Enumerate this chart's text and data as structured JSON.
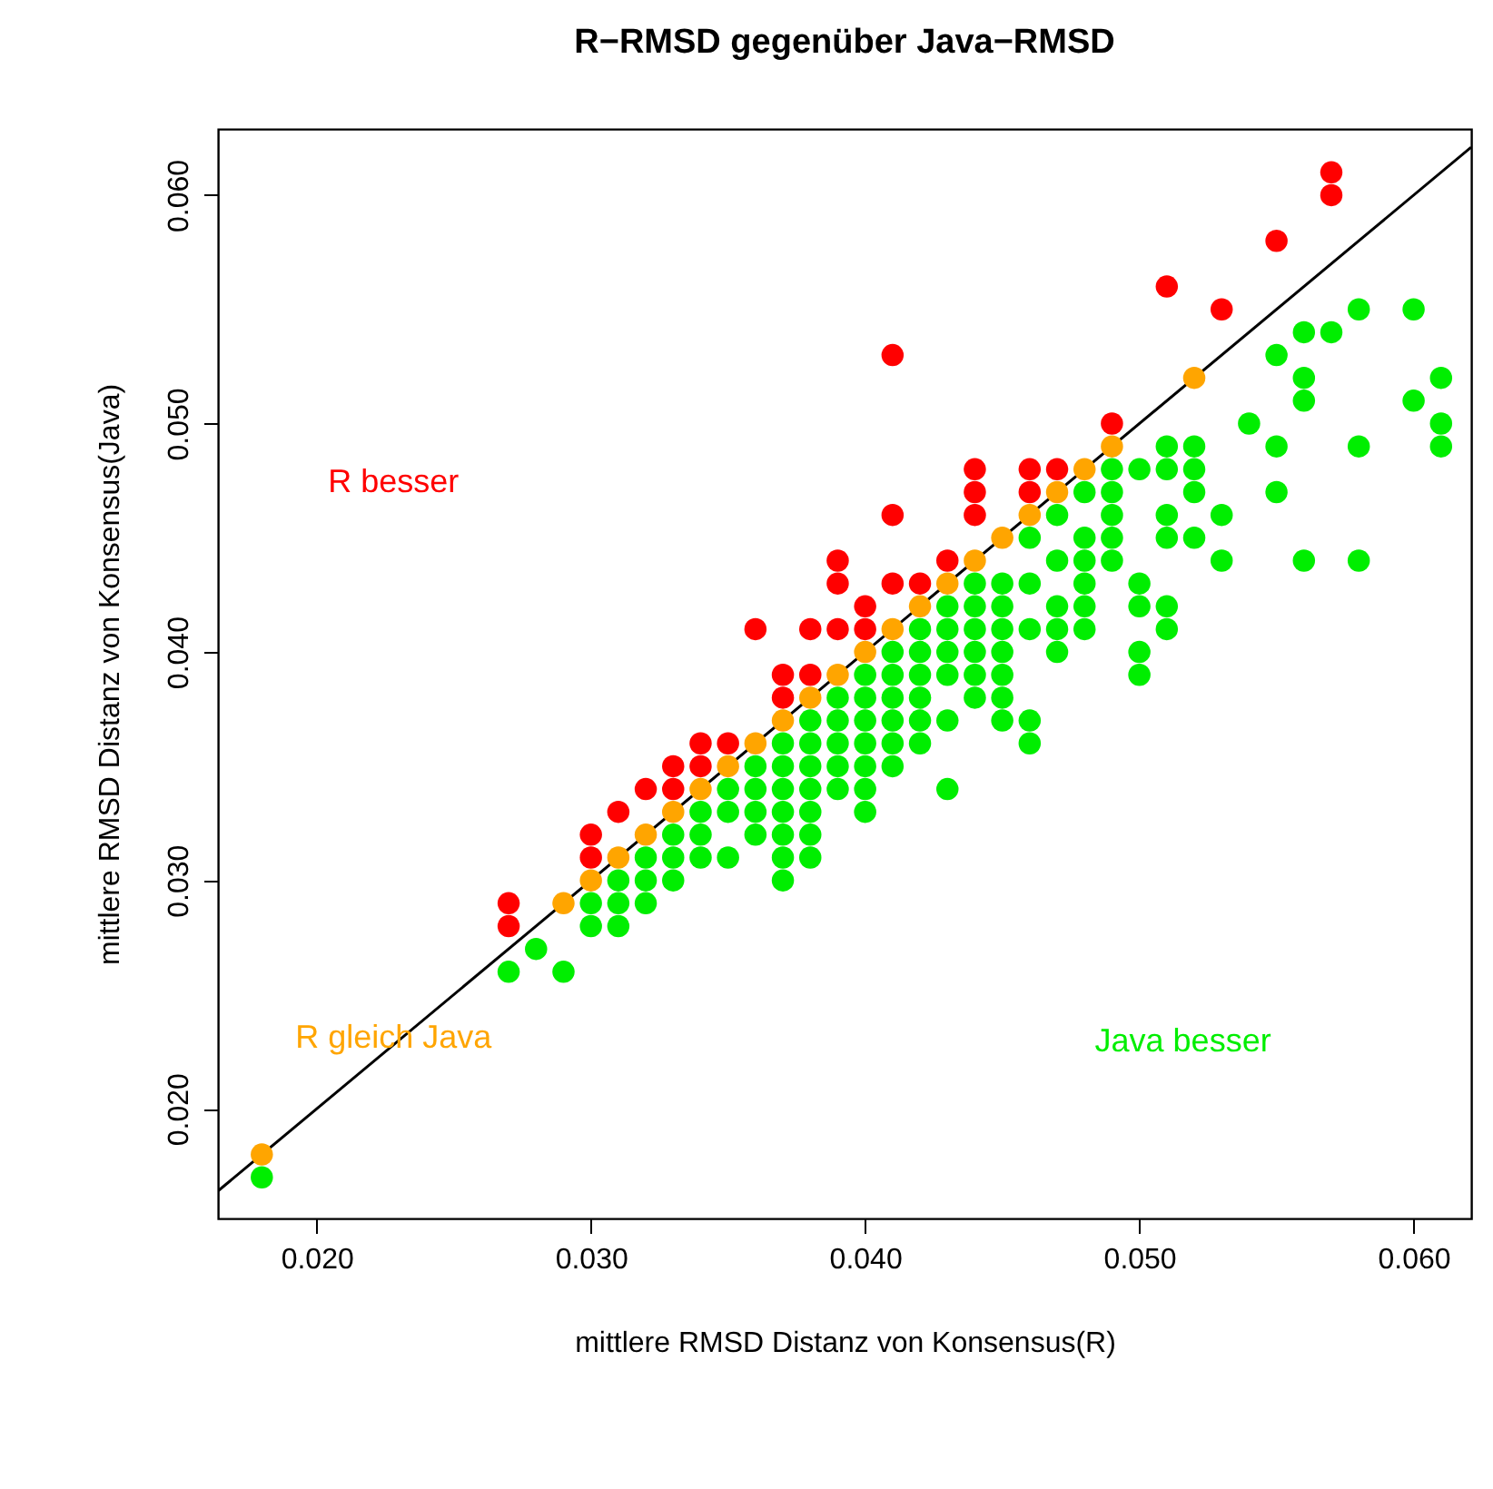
{
  "chart_data": {
    "type": "scatter",
    "title": "R−RMSD gegenüber Java−RMSD",
    "xlabel": "mittlere RMSD Distanz von Konsensus(R)",
    "ylabel": "mittlere RMSD Distanz von Konsensus(Java)",
    "xlim": [
      0.0164,
      0.0621
    ],
    "ylim": [
      0.0152,
      0.0629
    ],
    "xticks": [
      {
        "value": 0.02,
        "label": "0.020"
      },
      {
        "value": 0.03,
        "label": "0.030"
      },
      {
        "value": 0.04,
        "label": "0.040"
      },
      {
        "value": 0.05,
        "label": "0.050"
      },
      {
        "value": 0.06,
        "label": "0.060"
      }
    ],
    "yticks": [
      {
        "value": 0.02,
        "label": "0.020"
      },
      {
        "value": 0.03,
        "label": "0.030"
      },
      {
        "value": 0.04,
        "label": "0.040"
      },
      {
        "value": 0.05,
        "label": "0.050"
      },
      {
        "value": 0.06,
        "label": "0.060"
      }
    ],
    "marker": "circle",
    "grid": false,
    "series": [
      {
        "type": "line",
        "color": "#000000",
        "line_style": "solid",
        "marker": "none",
        "x": [
          0.0164,
          0.0621
        ],
        "values": [
          0.0164,
          0.0621
        ]
      },
      {
        "name": "R besser",
        "color": "#ff0000",
        "x": [
          0.027,
          0.027,
          0.03,
          0.03,
          0.031,
          0.032,
          0.033,
          0.033,
          0.034,
          0.034,
          0.035,
          0.036,
          0.037,
          0.037,
          0.038,
          0.038,
          0.039,
          0.039,
          0.039,
          0.04,
          0.04,
          0.041,
          0.041,
          0.041,
          0.042,
          0.043,
          0.044,
          0.044,
          0.044,
          0.046,
          0.046,
          0.047,
          0.049,
          0.051,
          0.053,
          0.055,
          0.057,
          0.057
        ],
        "values": [
          0.029,
          0.028,
          0.032,
          0.031,
          0.033,
          0.034,
          0.035,
          0.034,
          0.036,
          0.035,
          0.036,
          0.041,
          0.039,
          0.038,
          0.041,
          0.039,
          0.044,
          0.043,
          0.041,
          0.042,
          0.041,
          0.053,
          0.046,
          0.043,
          0.043,
          0.044,
          0.048,
          0.047,
          0.046,
          0.048,
          0.047,
          0.048,
          0.05,
          0.056,
          0.055,
          0.058,
          0.061,
          0.06
        ]
      },
      {
        "name": "R gleich Java",
        "color": "#ffa500",
        "x": [
          0.018,
          0.029,
          0.03,
          0.031,
          0.032,
          0.033,
          0.034,
          0.035,
          0.036,
          0.037,
          0.038,
          0.039,
          0.04,
          0.041,
          0.042,
          0.043,
          0.044,
          0.045,
          0.046,
          0.047,
          0.048,
          0.049,
          0.052
        ],
        "values": [
          0.018,
          0.029,
          0.03,
          0.031,
          0.032,
          0.033,
          0.034,
          0.035,
          0.036,
          0.037,
          0.038,
          0.039,
          0.04,
          0.041,
          0.042,
          0.043,
          0.044,
          0.045,
          0.046,
          0.047,
          0.048,
          0.049,
          0.052
        ]
      },
      {
        "name": "Java besser",
        "color": "#00ee00",
        "x": [
          0.018,
          0.027,
          0.028,
          0.029,
          0.03,
          0.03,
          0.031,
          0.031,
          0.031,
          0.032,
          0.032,
          0.032,
          0.033,
          0.033,
          0.033,
          0.034,
          0.034,
          0.034,
          0.035,
          0.035,
          0.035,
          0.036,
          0.036,
          0.036,
          0.036,
          0.037,
          0.037,
          0.037,
          0.037,
          0.037,
          0.037,
          0.037,
          0.038,
          0.038,
          0.038,
          0.038,
          0.038,
          0.038,
          0.038,
          0.039,
          0.039,
          0.039,
          0.039,
          0.039,
          0.04,
          0.04,
          0.04,
          0.04,
          0.04,
          0.04,
          0.04,
          0.041,
          0.041,
          0.041,
          0.041,
          0.041,
          0.041,
          0.042,
          0.042,
          0.042,
          0.042,
          0.042,
          0.042,
          0.043,
          0.043,
          0.043,
          0.043,
          0.043,
          0.043,
          0.044,
          0.044,
          0.044,
          0.044,
          0.044,
          0.044,
          0.045,
          0.045,
          0.045,
          0.045,
          0.045,
          0.045,
          0.045,
          0.046,
          0.046,
          0.046,
          0.046,
          0.046,
          0.047,
          0.047,
          0.047,
          0.047,
          0.047,
          0.048,
          0.048,
          0.048,
          0.048,
          0.048,
          0.048,
          0.049,
          0.049,
          0.049,
          0.049,
          0.049,
          0.05,
          0.05,
          0.05,
          0.05,
          0.05,
          0.051,
          0.051,
          0.051,
          0.051,
          0.051,
          0.051,
          0.052,
          0.052,
          0.052,
          0.052,
          0.053,
          0.053,
          0.054,
          0.055,
          0.055,
          0.055,
          0.056,
          0.056,
          0.056,
          0.056,
          0.057,
          0.058,
          0.058,
          0.058,
          0.06,
          0.06,
          0.061,
          0.061,
          0.061
        ],
        "values": [
          0.017,
          0.026,
          0.027,
          0.026,
          0.029,
          0.028,
          0.03,
          0.029,
          0.028,
          0.031,
          0.03,
          0.029,
          0.032,
          0.031,
          0.03,
          0.033,
          0.032,
          0.031,
          0.034,
          0.033,
          0.031,
          0.035,
          0.034,
          0.033,
          0.032,
          0.036,
          0.035,
          0.034,
          0.033,
          0.032,
          0.031,
          0.03,
          0.037,
          0.036,
          0.035,
          0.034,
          0.033,
          0.032,
          0.031,
          0.038,
          0.037,
          0.036,
          0.035,
          0.034,
          0.039,
          0.038,
          0.037,
          0.036,
          0.035,
          0.034,
          0.033,
          0.04,
          0.039,
          0.038,
          0.037,
          0.036,
          0.035,
          0.041,
          0.04,
          0.039,
          0.038,
          0.037,
          0.036,
          0.042,
          0.041,
          0.04,
          0.039,
          0.037,
          0.034,
          0.043,
          0.042,
          0.041,
          0.04,
          0.039,
          0.038,
          0.043,
          0.042,
          0.041,
          0.04,
          0.039,
          0.038,
          0.037,
          0.045,
          0.043,
          0.041,
          0.037,
          0.036,
          0.046,
          0.044,
          0.042,
          0.041,
          0.04,
          0.047,
          0.045,
          0.044,
          0.043,
          0.042,
          0.041,
          0.048,
          0.047,
          0.046,
          0.045,
          0.044,
          0.048,
          0.043,
          0.042,
          0.04,
          0.039,
          0.049,
          0.048,
          0.046,
          0.045,
          0.042,
          0.041,
          0.049,
          0.048,
          0.047,
          0.045,
          0.046,
          0.044,
          0.05,
          0.053,
          0.049,
          0.047,
          0.054,
          0.052,
          0.051,
          0.044,
          0.054,
          0.055,
          0.049,
          0.044,
          0.055,
          0.051,
          0.052,
          0.05,
          0.049
        ]
      }
    ]
  }
}
